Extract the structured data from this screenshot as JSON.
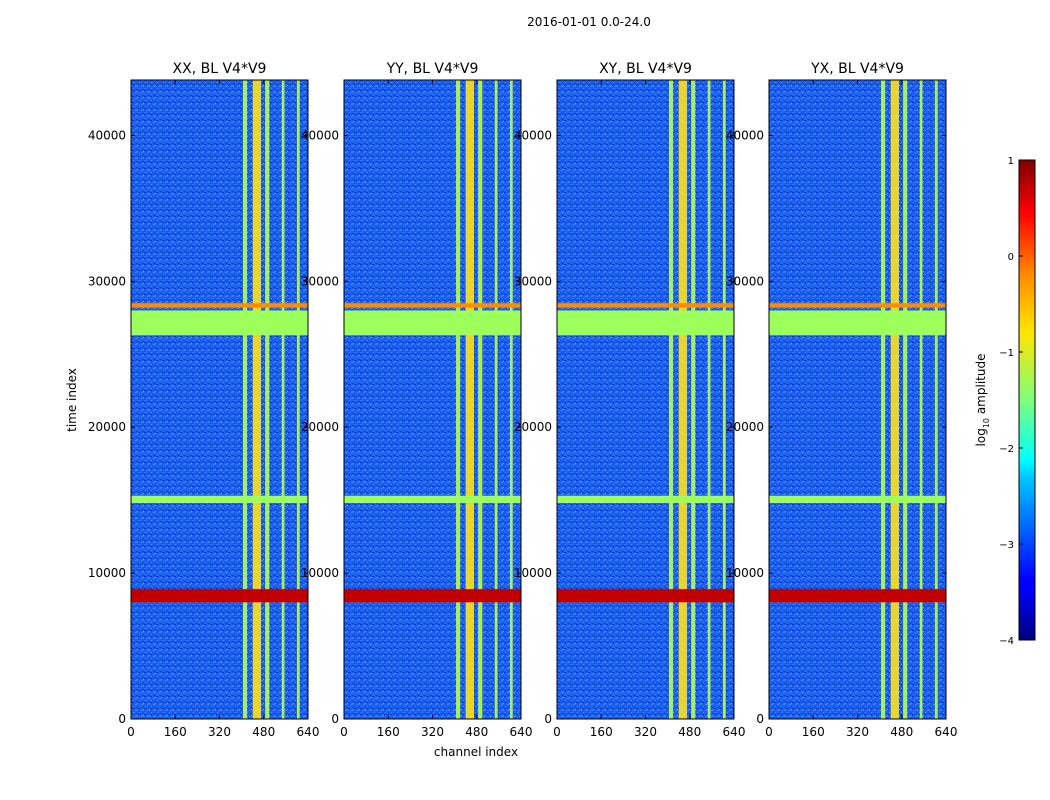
{
  "suptitle": "2016-01-01 0.0-24.0",
  "chart_data": {
    "type": "heatmap",
    "xlabel": "channel index",
    "ylabel": "time index",
    "xlim": [
      0,
      640
    ],
    "ylim": [
      0,
      43800
    ],
    "x_ticks": [
      "0",
      "160",
      "320",
      "480",
      "640"
    ],
    "x_tick_values": [
      0,
      160,
      320,
      480,
      640
    ],
    "y_ticks": [
      "0",
      "10000",
      "20000",
      "30000",
      "40000"
    ],
    "y_tick_values": [
      0,
      10000,
      20000,
      30000,
      40000
    ],
    "panels": [
      {
        "title": "XX, BL V4*V9"
      },
      {
        "title": "YY, BL V4*V9"
      },
      {
        "title": "XY, BL V4*V9"
      },
      {
        "title": "YX, BL V4*V9"
      }
    ],
    "colorbar": {
      "label": "log10 amplitude",
      "label_main": "log",
      "label_sub": "10",
      "label_rest": " amplitude",
      "range": [
        -4,
        1
      ],
      "colormap": "jet",
      "ticks": [
        "1",
        "0",
        "−1",
        "−2",
        "−3",
        "−4"
      ],
      "tick_values": [
        1,
        0,
        -1,
        -2,
        -3,
        -4
      ]
    },
    "flagged_time_bands": [
      [
        26300,
        28000
      ],
      [
        28200,
        28500
      ],
      [
        14800,
        15300
      ],
      [
        8000,
        8900
      ]
    ],
    "bright_channel_bands": [
      [
        405,
        420
      ],
      [
        440,
        470
      ],
      [
        485,
        500
      ],
      [
        545,
        555
      ],
      [
        600,
        610
      ]
    ]
  }
}
